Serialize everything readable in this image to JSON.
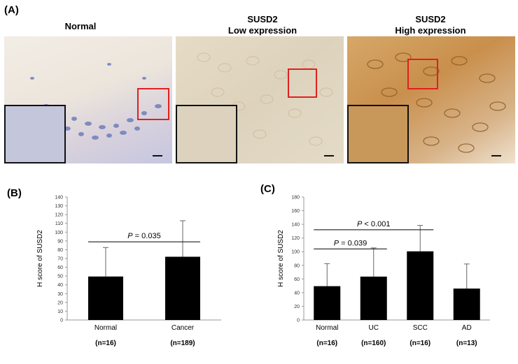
{
  "panel_labels": {
    "a": "(A)",
    "b": "(B)",
    "c": "(C)"
  },
  "micrographs": [
    {
      "title_line1": "Normal",
      "title_line2": "",
      "stain": "normal"
    },
    {
      "title_line1": "SUSD2",
      "title_line2": "Low expression",
      "stain": "low"
    },
    {
      "title_line1": "SUSD2",
      "title_line2": "High expression",
      "stain": "high"
    }
  ],
  "colors": {
    "bar": "#000000",
    "roi_box": "#e02020",
    "zoom_border": "#111111"
  },
  "chart_data": [
    {
      "type": "bar",
      "panel": "(B)",
      "ylabel": "H score of SUSD2",
      "ylim": [
        0,
        140
      ],
      "yticks": [
        0,
        10,
        20,
        30,
        40,
        50,
        60,
        70,
        80,
        90,
        100,
        110,
        120,
        130,
        140
      ],
      "categories": [
        "Normal",
        "Cancer"
      ],
      "n_labels": [
        "(n=16)",
        "(n=189)"
      ],
      "values": [
        49.5,
        72
      ],
      "errors": [
        33,
        41
      ],
      "annotations": [
        {
          "from": 0,
          "to": 1,
          "text": "P = 0.035",
          "y": 89
        }
      ],
      "grid": false
    },
    {
      "type": "bar",
      "panel": "(C)",
      "ylabel": "H score of SUSD2",
      "ylim": [
        0,
        180
      ],
      "yticks": [
        0,
        20,
        40,
        60,
        80,
        100,
        120,
        140,
        160,
        180
      ],
      "categories": [
        "Normal",
        "UC",
        "SCC",
        "AD"
      ],
      "n_labels": [
        "(n=16)",
        "(n=160)",
        "(n=16)",
        "(n=13)"
      ],
      "values": [
        49.5,
        63.5,
        100.5,
        46
      ],
      "errors": [
        33,
        42,
        38,
        36
      ],
      "annotations": [
        {
          "from": 0,
          "to": 1,
          "text": "P = 0.039",
          "y": 104
        },
        {
          "from": 0,
          "to": 2,
          "text": "P < 0.001",
          "y": 132
        }
      ],
      "grid": false
    }
  ]
}
